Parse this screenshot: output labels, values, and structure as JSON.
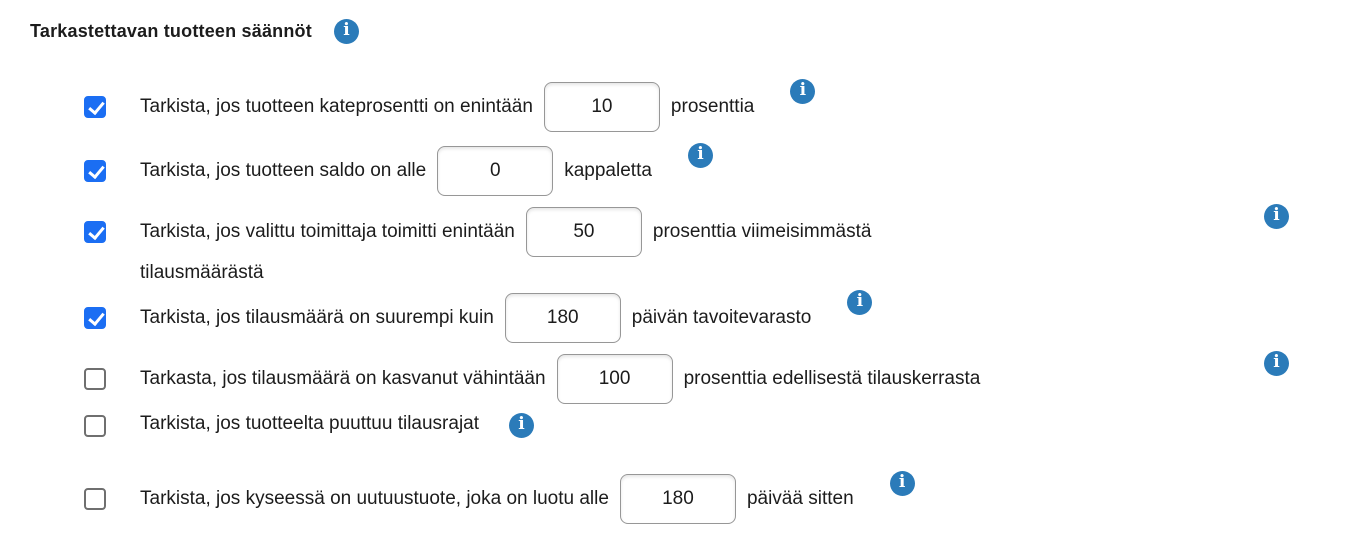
{
  "page": {
    "title": "Tarkastettavan tuotteen säännöt"
  },
  "icons": {
    "info_glyph": "i"
  },
  "colors": {
    "checkbox_checked": "#1b6ef3",
    "info_icon": "#2b7bb9",
    "input_border": "#979797"
  },
  "rules": [
    {
      "checked": true,
      "text_before": "Tarkista, jos tuotteen kateprosentti on enintään",
      "input_value": "10",
      "text_after": "prosenttia"
    },
    {
      "checked": true,
      "text_before": "Tarkista, jos tuotteen saldo on alle",
      "input_value": "0",
      "text_after": "kappaletta"
    },
    {
      "checked": true,
      "text_before": "Tarkista, jos valittu toimittaja toimitti enintään",
      "input_value": "50",
      "text_after": "prosenttia viimeisimmästä",
      "text_line2": "tilausmäärästä"
    },
    {
      "checked": true,
      "text_before": "Tarkista, jos tilausmäärä on suurempi kuin",
      "input_value": "180",
      "text_after": "päivän tavoitevarasto"
    },
    {
      "checked": false,
      "text_before": "Tarkasta, jos tilausmäärä on kasvanut vähintään",
      "input_value": "100",
      "text_after": "prosenttia edellisestä tilauskerrasta"
    },
    {
      "checked": false,
      "text_before": "Tarkista, jos tuotteelta puuttuu tilausrajat"
    },
    {
      "checked": false,
      "text_before": "Tarkista, jos kyseessä on uutuustuote, joka on luotu alle",
      "input_value": "180",
      "text_after": "päivää sitten"
    }
  ]
}
